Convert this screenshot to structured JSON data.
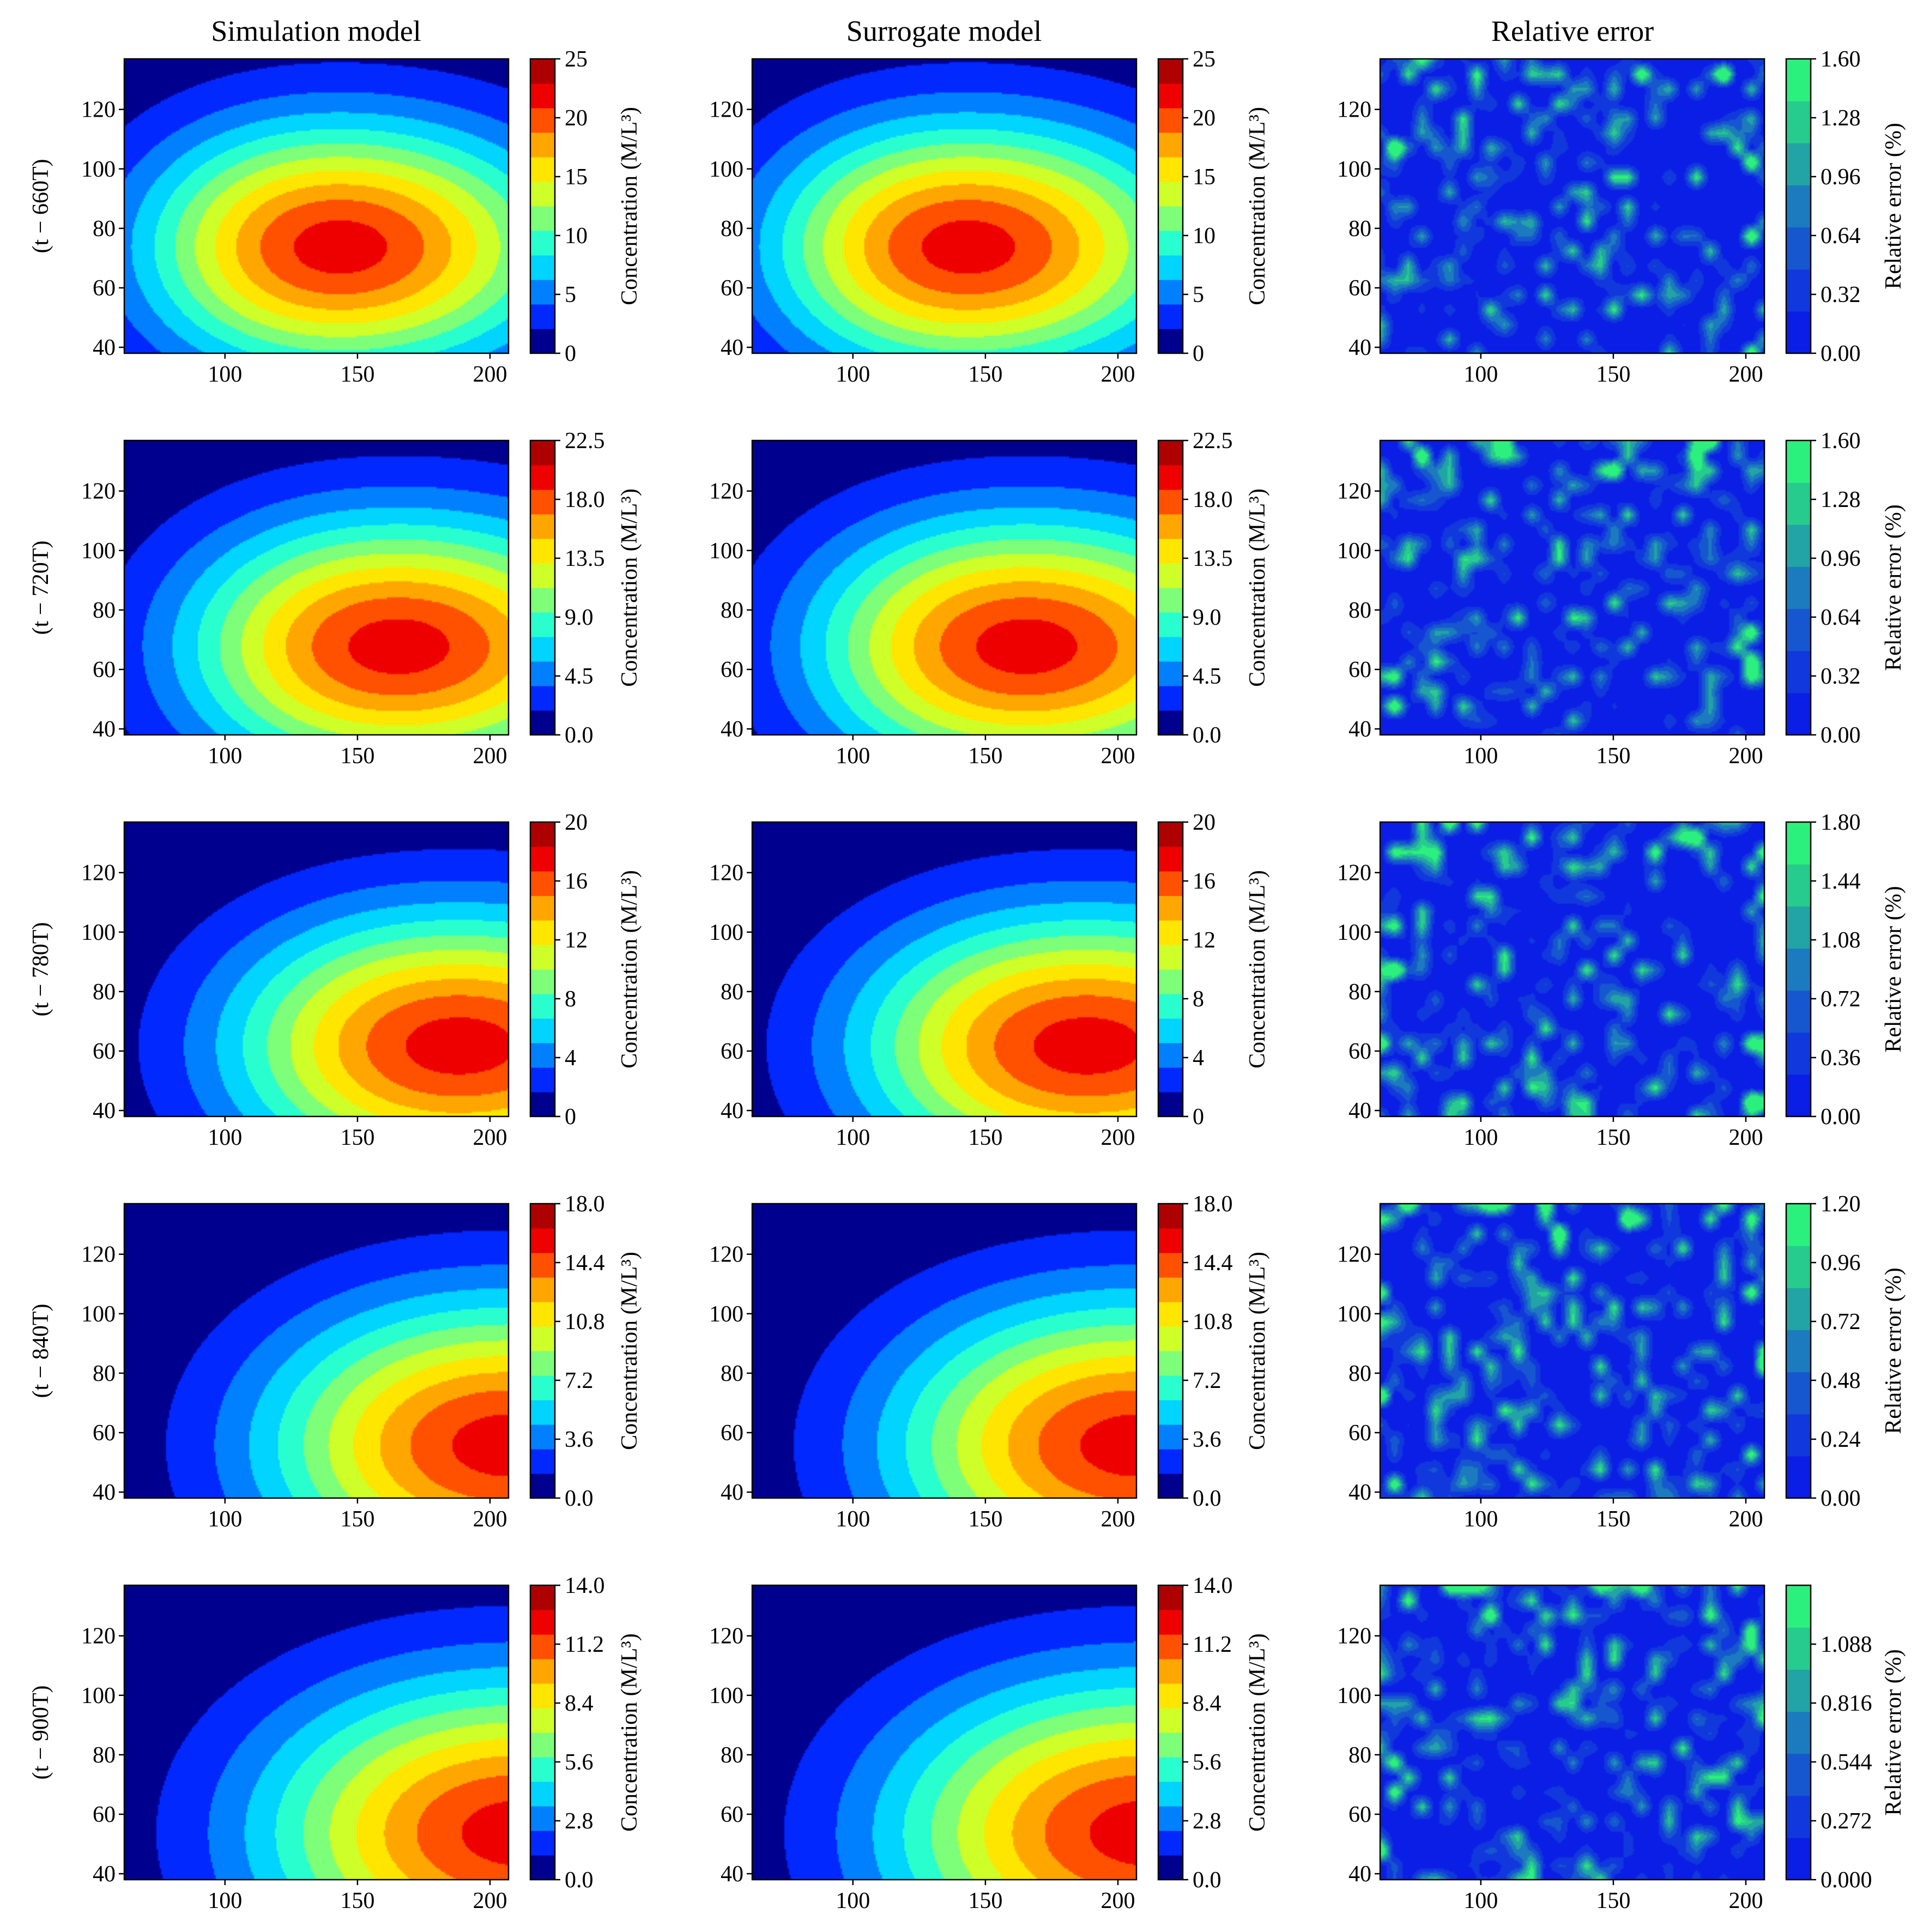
{
  "chart_data": {
    "type": "heatmap",
    "layout": {
      "rows": 5,
      "cols": 3
    },
    "column_titles": [
      "Simulation model",
      "Surrogate model",
      "Relative error"
    ],
    "x_ticks": [
      100,
      150,
      200
    ],
    "x_range": [
      62,
      207
    ],
    "y_ticks": [
      40,
      60,
      80,
      100,
      120
    ],
    "y_range": [
      38,
      137
    ],
    "concentration_colorbar_label": "Concentration (M/L³)",
    "error_colorbar_label": "Relative error (%)",
    "colormaps": {
      "concentration": [
        "#00008f",
        "#0028ff",
        "#0080ff",
        "#00d4ff",
        "#29ffce",
        "#7dff7a",
        "#ceff29",
        "#ffe600",
        "#ffa600",
        "#ff5100",
        "#ef0000",
        "#af0000"
      ],
      "error": [
        "#0b1ee6",
        "#1138dc",
        "#1657cf",
        "#1c7bbe",
        "#22a3a5",
        "#27cb8e",
        "#2cf07e"
      ]
    },
    "rows": [
      {
        "label": "(t − 660T)",
        "concentration": {
          "ticks": [
            "0",
            "5",
            "10",
            "15",
            "20",
            "25"
          ],
          "max": 25,
          "levels": 10,
          "peak": [
            143,
            74
          ],
          "spread": [
            60,
            30
          ]
        },
        "error": {
          "ticks": [
            "0.00",
            "0.32",
            "0.64",
            "0.96",
            "1.28",
            "1.60"
          ],
          "max": 1.6
        }
      },
      {
        "label": "(t − 720T)",
        "concentration": {
          "ticks": [
            "0.0",
            "4.5",
            "9.0",
            "13.5",
            "18.0",
            "22.5"
          ],
          "max": 22.5,
          "levels": 10,
          "peak": [
            165,
            68
          ],
          "spread": [
            65,
            31
          ]
        },
        "error": {
          "ticks": [
            "0.00",
            "0.32",
            "0.64",
            "0.96",
            "1.28",
            "1.60"
          ],
          "max": 1.6
        }
      },
      {
        "label": "(t − 780T)",
        "concentration": {
          "ticks": [
            "0",
            "4",
            "8",
            "12",
            "16",
            "20"
          ],
          "max": 20,
          "levels": 10,
          "peak": [
            188,
            62
          ],
          "spread": [
            70,
            32
          ]
        },
        "error": {
          "ticks": [
            "0.00",
            "0.36",
            "0.72",
            "1.08",
            "1.44",
            "1.80"
          ],
          "max": 1.8
        }
      },
      {
        "label": "(t − 840T)",
        "concentration": {
          "ticks": [
            "0.0",
            "3.6",
            "7.2",
            "10.8",
            "14.4",
            "18.0"
          ],
          "max": 18,
          "levels": 10,
          "peak": [
            207,
            56
          ],
          "spread": [
            75,
            35
          ]
        },
        "error": {
          "ticks": [
            "0.00",
            "0.24",
            "0.48",
            "0.72",
            "0.96",
            "1.20"
          ],
          "max": 1.2
        }
      },
      {
        "label": "(t − 900T)",
        "concentration": {
          "ticks": [
            "0.0",
            "2.8",
            "5.6",
            "8.4",
            "11.2",
            "14.0"
          ],
          "max": 14,
          "levels": 10,
          "peak": [
            212,
            54
          ],
          "spread": [
            80,
            37
          ]
        },
        "error": {
          "ticks": [
            "0.000",
            "0.272",
            "0.544",
            "0.816",
            "1.088"
          ],
          "max": 1.36
        }
      }
    ]
  }
}
